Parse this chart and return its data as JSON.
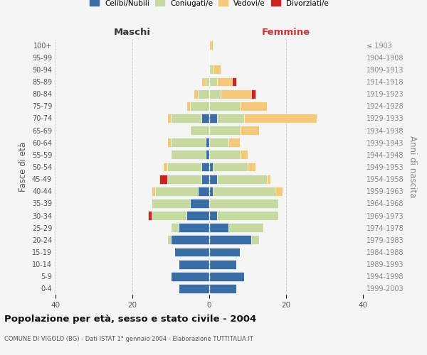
{
  "age_groups": [
    "0-4",
    "5-9",
    "10-14",
    "15-19",
    "20-24",
    "25-29",
    "30-34",
    "35-39",
    "40-44",
    "45-49",
    "50-54",
    "55-59",
    "60-64",
    "65-69",
    "70-74",
    "75-79",
    "80-84",
    "85-89",
    "90-94",
    "95-99",
    "100+"
  ],
  "birth_years": [
    "1999-2003",
    "1994-1998",
    "1989-1993",
    "1984-1988",
    "1979-1983",
    "1974-1978",
    "1969-1973",
    "1964-1968",
    "1959-1963",
    "1954-1958",
    "1949-1953",
    "1944-1948",
    "1939-1943",
    "1934-1938",
    "1929-1933",
    "1924-1928",
    "1919-1923",
    "1914-1918",
    "1909-1913",
    "1904-1908",
    "≤ 1903"
  ],
  "colors": {
    "celibi": "#3a6ea5",
    "coniugati": "#c5d9a0",
    "vedovi": "#f5c97a",
    "divorziati": "#cc2222"
  },
  "maschi": {
    "celibi": [
      8,
      10,
      8,
      9,
      10,
      8,
      6,
      5,
      3,
      2,
      2,
      1,
      1,
      0,
      2,
      0,
      0,
      0,
      0,
      0,
      0
    ],
    "coniugati": [
      0,
      0,
      0,
      0,
      1,
      2,
      9,
      10,
      11,
      9,
      9,
      9,
      9,
      5,
      8,
      5,
      3,
      1,
      0,
      0,
      0
    ],
    "vedovi": [
      0,
      0,
      0,
      0,
      0,
      0,
      0,
      0,
      1,
      0,
      1,
      0,
      1,
      0,
      1,
      1,
      1,
      1,
      0,
      0,
      0
    ],
    "divorziati": [
      0,
      0,
      0,
      0,
      0,
      0,
      1,
      0,
      0,
      2,
      0,
      0,
      0,
      0,
      0,
      0,
      0,
      0,
      0,
      0,
      0
    ]
  },
  "femmine": {
    "celibi": [
      7,
      9,
      7,
      8,
      11,
      5,
      2,
      0,
      1,
      2,
      1,
      0,
      0,
      0,
      2,
      0,
      0,
      0,
      0,
      0,
      0
    ],
    "coniugati": [
      0,
      0,
      0,
      0,
      2,
      9,
      16,
      18,
      16,
      13,
      9,
      8,
      5,
      8,
      7,
      8,
      3,
      2,
      1,
      0,
      0
    ],
    "vedovi": [
      0,
      0,
      0,
      0,
      0,
      0,
      0,
      0,
      2,
      1,
      2,
      2,
      3,
      5,
      19,
      7,
      8,
      4,
      2,
      0,
      1
    ],
    "divorziati": [
      0,
      0,
      0,
      0,
      0,
      0,
      0,
      0,
      0,
      0,
      0,
      0,
      0,
      0,
      0,
      0,
      1,
      1,
      0,
      0,
      0
    ]
  },
  "title": "Popolazione per età, sesso e stato civile - 2004",
  "subtitle": "COMUNE DI VIGOLO (BG) - Dati ISTAT 1° gennaio 2004 - Elaborazione TUTTITALIA.IT",
  "xlabel_left": "Maschi",
  "xlabel_right": "Femmine",
  "ylabel_left": "Fasce di età",
  "ylabel_right": "Anni di nascita",
  "xlim": 40,
  "legend_labels": [
    "Celibi/Nubili",
    "Coniugati/e",
    "Vedovi/e",
    "Divorziati/e"
  ],
  "background_color": "#f5f5f5"
}
